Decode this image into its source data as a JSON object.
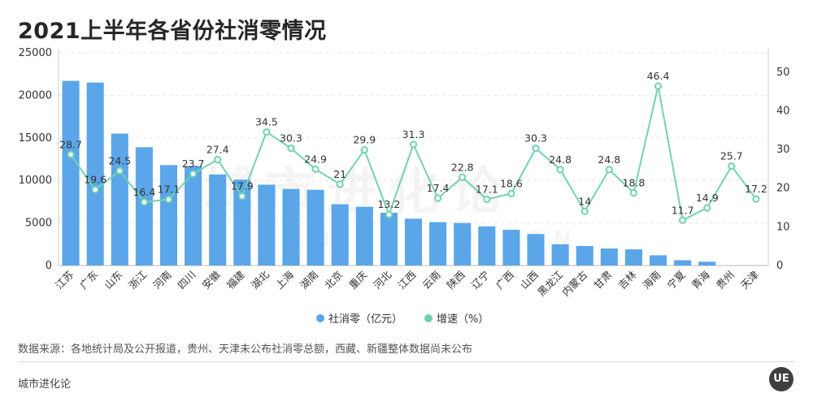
{
  "page": {
    "title": "2021上半年各省份社消零情况",
    "source_note": "数据来源：各地统计局及公开报道，贵州、天津未公布社消零总额，西藏、新疆整体数据尚未公布",
    "brand": "城市进化论",
    "logo_text": "UE",
    "watermark": "城市进化论",
    "watermark_en": "URBAN EVOLUTION"
  },
  "colors": {
    "bar": "#5aa6e8",
    "line": "#72d3b0",
    "grid": "#e6e6e6",
    "axis_text": "#333333"
  },
  "chart_data": {
    "type": "bar",
    "title": "2021上半年各省份社消零情况",
    "categories": [
      "江苏",
      "广东",
      "山东",
      "浙江",
      "河南",
      "四川",
      "安徽",
      "福建",
      "湖北",
      "上海",
      "湖南",
      "北京",
      "重庆",
      "河北",
      "江西",
      "云南",
      "陕西",
      "辽宁",
      "广西",
      "山西",
      "黑龙江",
      "内蒙古",
      "甘肃",
      "吉林",
      "海南",
      "宁夏",
      "青海",
      "贵州",
      "天津"
    ],
    "series": [
      {
        "name": "社消零（亿元）",
        "type": "bar",
        "axis": "left",
        "values": [
          21700,
          21500,
          15500,
          13900,
          11800,
          11700,
          10700,
          10100,
          9500,
          9000,
          8900,
          7200,
          6900,
          6200,
          5500,
          5100,
          5000,
          4600,
          4200,
          3700,
          2500,
          2300,
          2000,
          1900,
          1200,
          620,
          450,
          null,
          null
        ]
      },
      {
        "name": "增速（%）",
        "type": "line",
        "axis": "right",
        "values": [
          28.7,
          19.6,
          24.5,
          16.4,
          17.1,
          23.7,
          27.4,
          17.9,
          34.5,
          30.3,
          24.9,
          21,
          29.9,
          13.2,
          31.3,
          17.4,
          22.8,
          17.1,
          18.6,
          30.3,
          24.8,
          14,
          24.8,
          18.8,
          46.4,
          11.7,
          14.9,
          25.7,
          17.2
        ],
        "labels": [
          "28.7",
          "19.6",
          "24.5",
          "16.4",
          "17.1",
          "23.7",
          "27.4",
          "17.9",
          "34.5",
          "30.3",
          "24.9",
          "21",
          "29.9",
          "13.2",
          "31.3",
          "17.4",
          "22.8",
          "17.1",
          "18.6",
          "30.3",
          "24.8",
          "14",
          "24.8",
          "18.8",
          "46.4",
          "11.7",
          "14.9",
          "25.7",
          "17.2"
        ]
      }
    ],
    "y_left": {
      "min": 0,
      "max": 25000,
      "ticks": [
        0,
        5000,
        10000,
        15000,
        20000,
        25000
      ]
    },
    "y_right": {
      "min": 0,
      "max": 55,
      "ticks": [
        0,
        10,
        20,
        30,
        40,
        50
      ]
    },
    "legend_position": "bottom-center",
    "grid": true
  }
}
